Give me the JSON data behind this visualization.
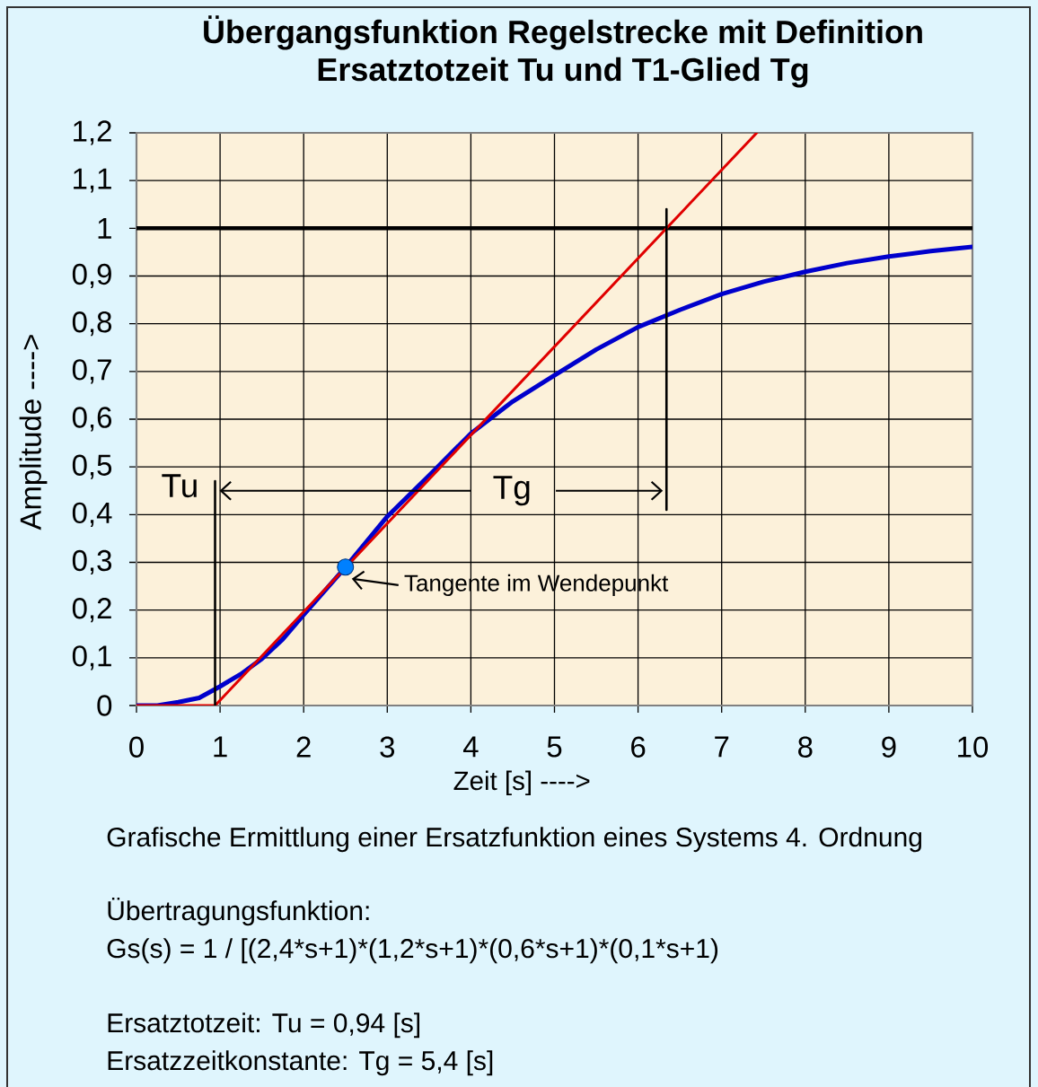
{
  "chart_data": {
    "type": "line",
    "title": "Übergangsfunktion Regelstrecke mit Definition Ersatztotzeit Tu und T1-Glied Tg",
    "xlabel": "Zeit [s] ---->",
    "ylabel": "Amplitude ---->",
    "xlim": [
      0,
      10
    ],
    "ylim": [
      0,
      1.2
    ],
    "xticks": [
      0,
      1,
      2,
      3,
      4,
      5,
      6,
      7,
      8,
      9,
      10
    ],
    "yticks": [
      0,
      {
        "value": 0.1,
        "label": "0,1"
      },
      {
        "value": 0.2,
        "label": "0,2"
      },
      {
        "value": 0.3,
        "label": "0,3"
      },
      {
        "value": 0.4,
        "label": "0,4"
      },
      {
        "value": 0.5,
        "label": "0,5"
      },
      {
        "value": 0.6,
        "label": "0,6"
      },
      {
        "value": 0.7,
        "label": "0,7"
      },
      {
        "value": 0.8,
        "label": "0,8"
      },
      {
        "value": 0.9,
        "label": "0,9"
      },
      1,
      {
        "value": 1.1,
        "label": "1,1"
      },
      {
        "value": 1.2,
        "label": "1,2"
      }
    ],
    "grid": true,
    "series": [
      {
        "color": "#0000cc",
        "x": [
          0,
          0.25,
          0.5,
          0.75,
          1,
          1.25,
          1.5,
          1.75,
          2,
          2.25,
          2.5,
          2.75,
          3,
          3.5,
          4,
          4.5,
          5,
          5.5,
          6,
          6.5,
          7,
          7.5,
          8,
          8.5,
          9,
          9.5,
          10
        ],
        "values": [
          0,
          0,
          0.007,
          0.016,
          0.04,
          0.066,
          0.098,
          0.139,
          0.19,
          0.24,
          0.29,
          0.343,
          0.396,
          0.482,
          0.57,
          0.637,
          0.692,
          0.746,
          0.793,
          0.829,
          0.862,
          0.888,
          0.909,
          0.927,
          0.941,
          0.952,
          0.961
        ]
      },
      {
        "color": "#e00000",
        "x": [
          0,
          0.94,
          7.42
        ],
        "values": [
          0,
          0,
          1.2
        ]
      },
      {
        "color": "#000000",
        "x": [
          0.94,
          0.94
        ],
        "values": [
          0,
          0.47
        ]
      },
      {
        "color": "#000000",
        "x": [
          6.34,
          6.34
        ],
        "values": [
          0.41,
          1.04
        ]
      },
      {
        "type": "scatter",
        "color": "#0080ff",
        "marker": "circle",
        "x": [
          2.5
        ],
        "values": [
          0.29
        ]
      }
    ],
    "ref_lines": [
      {
        "axis": "y",
        "value": 1,
        "color": "#000000"
      }
    ],
    "annotations": [
      {
        "text": "Tu",
        "x": 0.94,
        "y": 0.45
      },
      "Tg",
      {
        "text": "Tangente im Wendepunkt",
        "x": 2.5,
        "y": 0.29
      },
      "Grafische Ermittlung einer Ersatzfunktion eines Systems 4. Ordnung",
      "Übertragungsfunktion:",
      "Gs(s) = 1 / [(2,4*s+1)*(1,2*s+1)*(0,6*s+1)*(0,1*s+1)",
      "Ersatztotzeit: Tu = 0,94 [s]",
      "Ersatzzeitkonstante: Tg = 5,4 [s]"
    ]
  }
}
